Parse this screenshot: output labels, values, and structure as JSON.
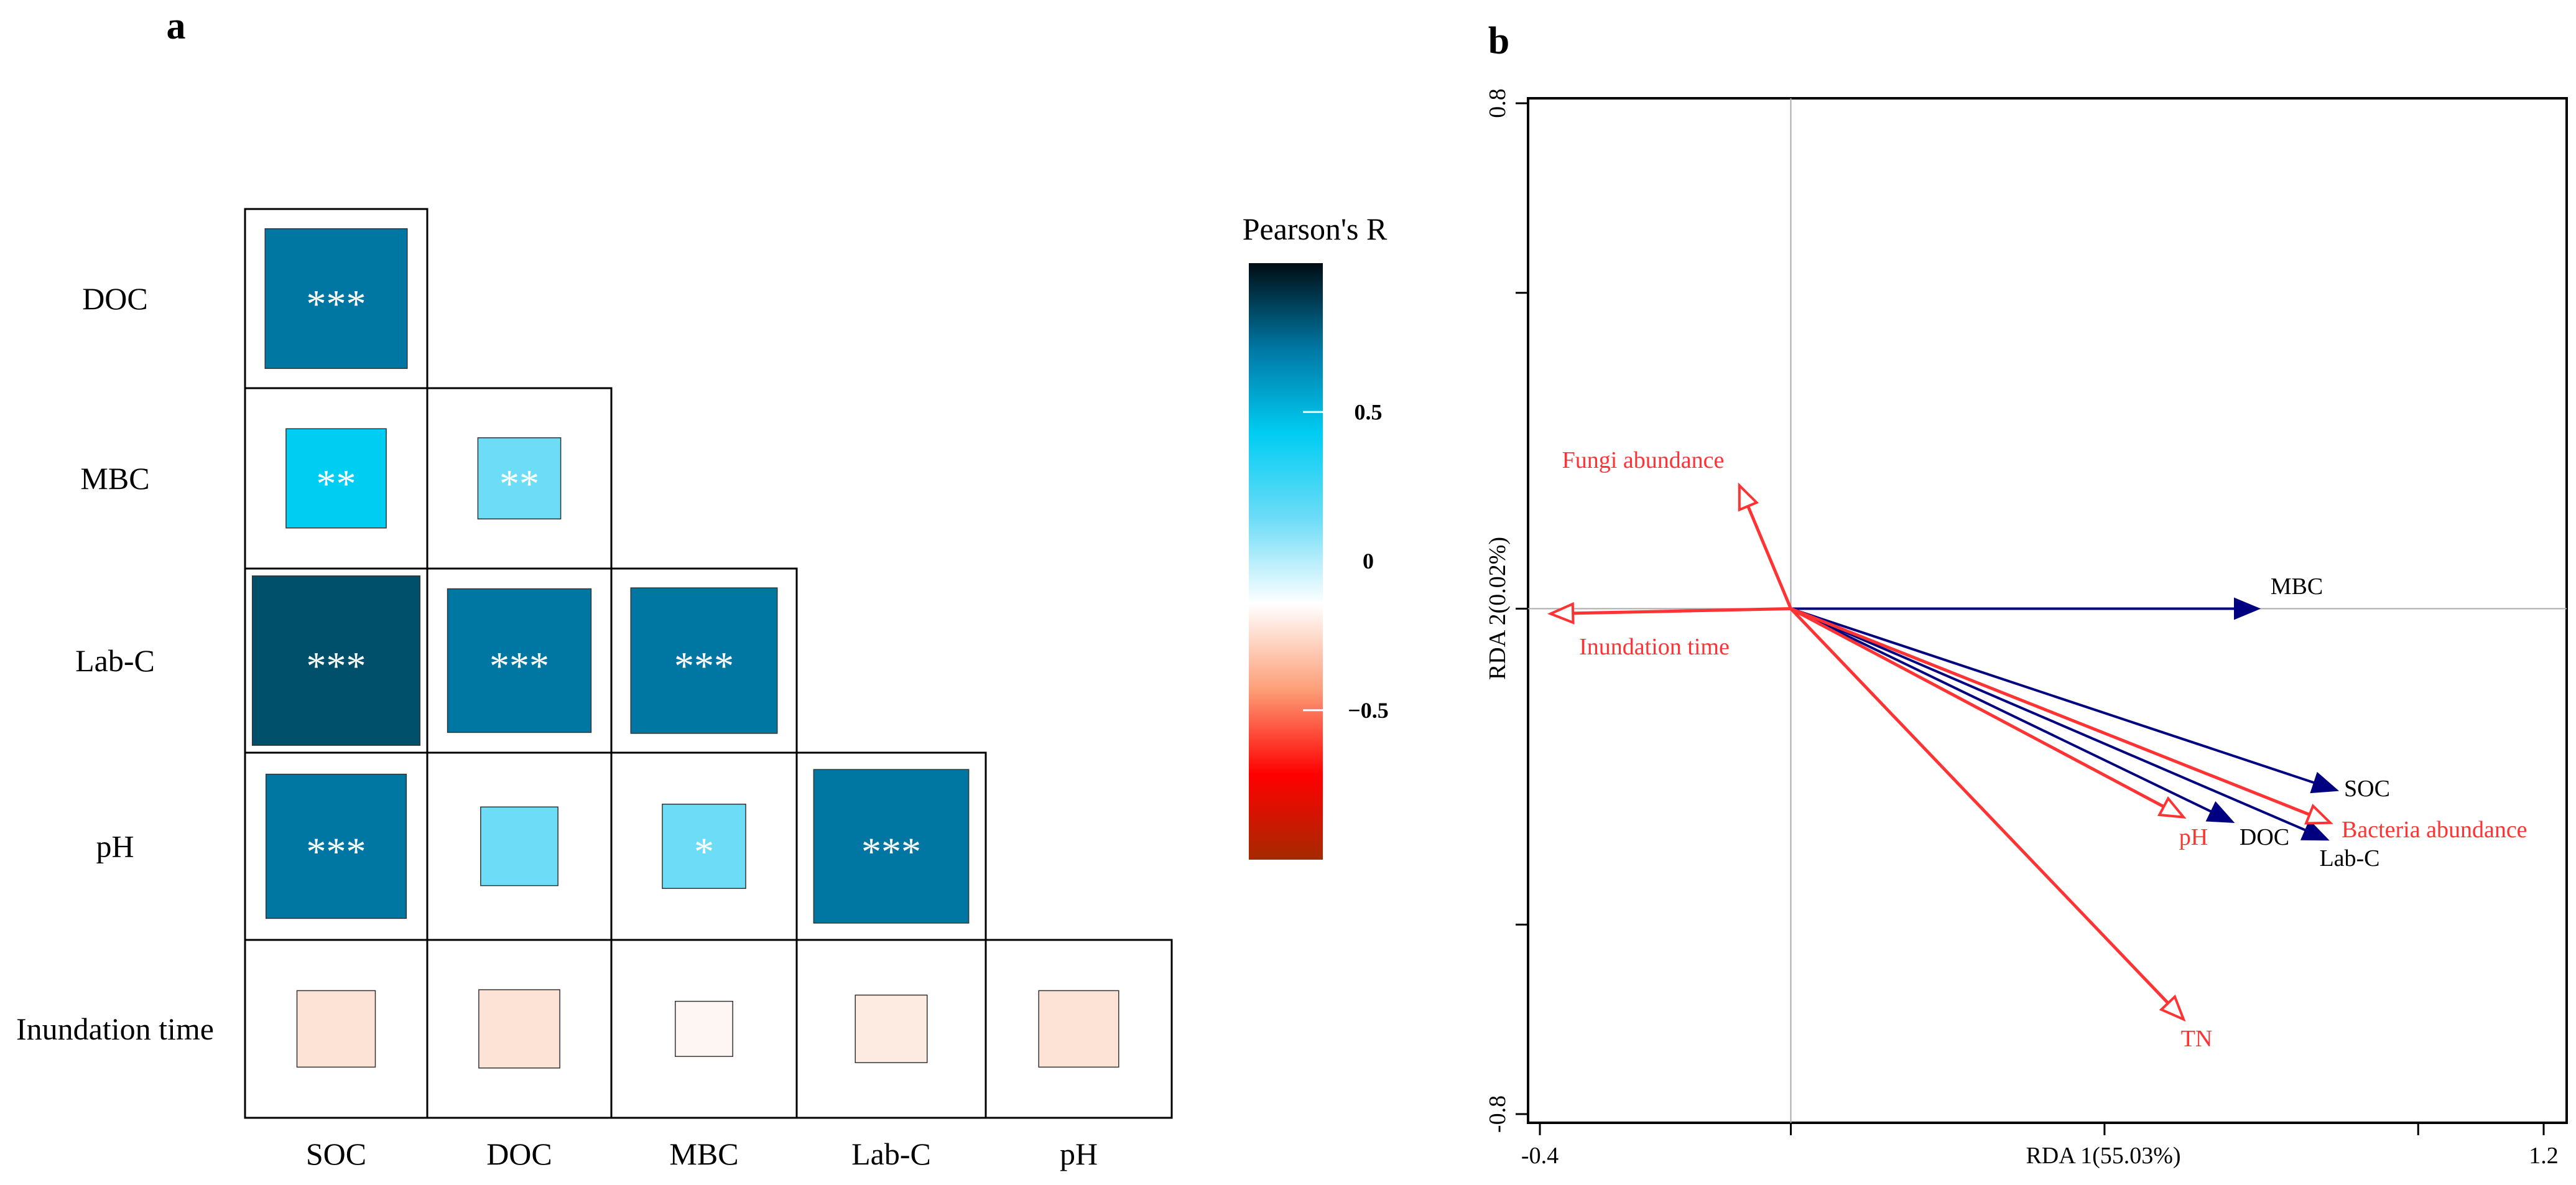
{
  "chart_data": [
    {
      "type": "heatmap",
      "panel_label": "a",
      "rows": [
        "DOC",
        "MBC",
        "Lab-C",
        "pH",
        "Inundation time"
      ],
      "columns": [
        "SOC",
        "DOC",
        "MBC",
        "Lab-C",
        "pH"
      ],
      "cells": [
        {
          "row": 0,
          "col": 0,
          "r": 0.78,
          "sig": "***",
          "color": "#0077a3"
        },
        {
          "row": 1,
          "col": 0,
          "r": 0.55,
          "sig": "**",
          "color": "#00cdf2"
        },
        {
          "row": 1,
          "col": 1,
          "r": 0.45,
          "sig": "**",
          "color": "#6ddcf7"
        },
        {
          "row": 2,
          "col": 0,
          "r": 0.92,
          "sig": "***",
          "color": "#00506c"
        },
        {
          "row": 2,
          "col": 1,
          "r": 0.78,
          "sig": "***",
          "color": "#0077a3"
        },
        {
          "row": 2,
          "col": 2,
          "r": 0.79,
          "sig": "***",
          "color": "#0077a3"
        },
        {
          "row": 3,
          "col": 0,
          "r": 0.77,
          "sig": "***",
          "color": "#0077a3"
        },
        {
          "row": 3,
          "col": 1,
          "r": 0.42,
          "sig": "",
          "color": "#6ddcf7"
        },
        {
          "row": 3,
          "col": 2,
          "r": 0.45,
          "sig": "*",
          "color": "#6ddcf7"
        },
        {
          "row": 3,
          "col": 3,
          "r": 0.82,
          "sig": "***",
          "color": "#0077a3"
        },
        {
          "row": 4,
          "col": 0,
          "r": -0.15,
          "sig": "",
          "color": "#fde3d6"
        },
        {
          "row": 4,
          "col": 1,
          "r": -0.16,
          "sig": "",
          "color": "#fde3d6"
        },
        {
          "row": 4,
          "col": 2,
          "r": -0.03,
          "sig": "",
          "color": "#fdf6f3"
        },
        {
          "row": 4,
          "col": 3,
          "r": -0.1,
          "sig": "",
          "color": "#fdeae0"
        },
        {
          "row": 4,
          "col": 4,
          "r": -0.15,
          "sig": "",
          "color": "#fde3d6"
        }
      ],
      "legend": {
        "title": "Pearson's R",
        "range": [
          -1,
          1
        ],
        "ticks": [
          {
            "value": 0.5,
            "label": "0.5"
          },
          {
            "value": 0,
            "label": "0"
          },
          {
            "value": -0.5,
            "label": "−0.5"
          }
        ],
        "gradient": [
          "#a52a00",
          "#ff0000",
          "#fc9f78",
          "#ffffff",
          "#6ddcf7",
          "#00cdf2",
          "#0077a3",
          "#000d14"
        ]
      }
    },
    {
      "type": "biplot",
      "panel_label": "b",
      "xlabel": "RDA 1(55.03%)",
      "ylabel": "RDA 2(0.02%)",
      "xlim": [
        -0.4,
        1.2
      ],
      "ylim": [
        -0.8,
        0.8
      ],
      "xtick_labels": [
        {
          "value": -0.4,
          "label": "-0.4"
        },
        {
          "value": 1.2,
          "label": "1.2"
        }
      ],
      "xticks": [
        -0.4,
        0,
        0.5,
        1.0,
        1.2
      ],
      "ytick_labels": [
        {
          "value": 0.8,
          "label": "0.8"
        },
        {
          "value": -0.8,
          "label": "-0.8"
        }
      ],
      "yticks": [
        0.8,
        0.5,
        0,
        -0.5,
        -0.8
      ],
      "colors": {
        "environment": "#000080",
        "response": "#ff3333",
        "zero_lines": "#aaaaaa"
      },
      "arrows": [
        {
          "name": "MBC",
          "group": "environment",
          "x": 0.744,
          "y": 0.0
        },
        {
          "name": "SOC",
          "group": "environment",
          "x": 0.869,
          "y": -0.287
        },
        {
          "name": "DOC",
          "group": "environment",
          "x": 0.703,
          "y": -0.337
        },
        {
          "name": "Lab-C",
          "group": "environment",
          "x": 0.854,
          "y": -0.365
        },
        {
          "name": "Bacteria abundance",
          "group": "response",
          "x": 0.86,
          "y": -0.339
        },
        {
          "name": "pH",
          "group": "response",
          "x": 0.626,
          "y": -0.33
        },
        {
          "name": "TN",
          "group": "response",
          "x": 0.626,
          "y": -0.65
        },
        {
          "name": "Fungi abundance",
          "group": "response",
          "x": -0.082,
          "y": 0.195
        },
        {
          "name": "Inundation time",
          "group": "response",
          "x": -0.383,
          "y": -0.008
        }
      ]
    }
  ]
}
